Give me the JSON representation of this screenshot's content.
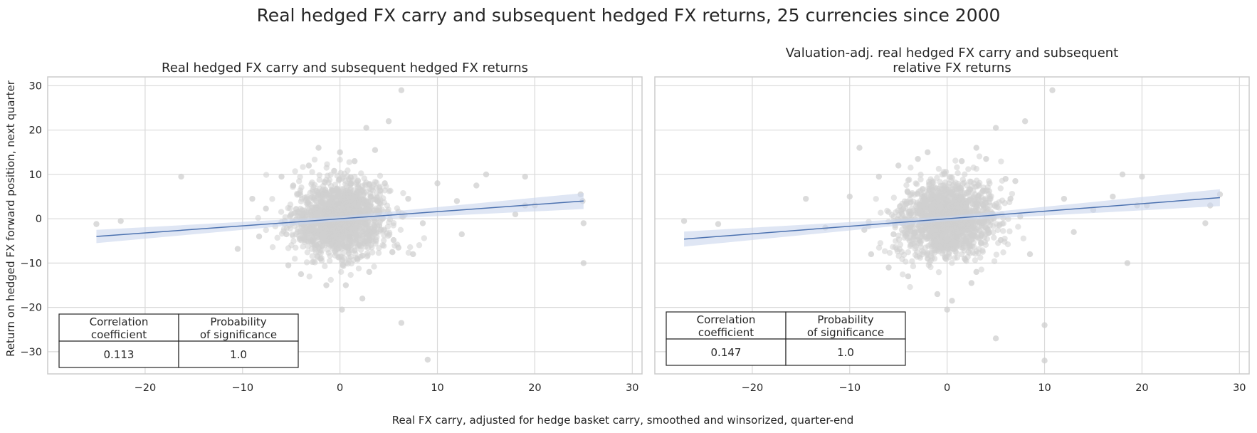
{
  "figure": {
    "title": "Real hedged FX carry and subsequent hedged FX returns, 25 currencies since 2000",
    "xlabel": "Real FX carry, adjusted for hedge basket carry, smoothed and winsorized, quarter-end",
    "ylabel": "Return on hedged FX forward position, next quarter"
  },
  "colors": {
    "points": "#cfcfcf",
    "line": "#4c72b0",
    "band": "#c9d5ec",
    "grid": "#d9d9d9",
    "spine": "#cccccc"
  },
  "chart_data": [
    {
      "type": "scatter",
      "title_lines": [
        "Real hedged FX carry and subsequent hedged FX returns"
      ],
      "xlim": [
        -30,
        31
      ],
      "ylim": [
        -35,
        32
      ],
      "xticks": [
        -20,
        -10,
        0,
        10,
        20,
        30
      ],
      "yticks": [
        -30,
        -20,
        -10,
        0,
        10,
        20,
        30
      ],
      "grid": true,
      "regression": {
        "slope": 0.16,
        "intercept": 0.0,
        "x_range": [
          -25,
          25
        ],
        "band": [
          [
            -25,
            1.5
          ],
          [
            0,
            0.5
          ],
          [
            25,
            1.8
          ]
        ]
      },
      "points_sample": [
        [
          -25.0,
          -1.2
        ],
        [
          -22.5,
          -0.5
        ],
        [
          -16.3,
          9.5
        ],
        [
          -10.5,
          -6.8
        ],
        [
          -9.0,
          4.5
        ],
        [
          -8.3,
          -4.0
        ],
        [
          -7.6,
          2.3
        ],
        [
          -6.0,
          9.5
        ],
        [
          -5.3,
          -10.5
        ],
        [
          -4.8,
          7.5
        ],
        [
          -4.0,
          -12.5
        ],
        [
          -3.2,
          12.0
        ],
        [
          -2.2,
          16.0
        ],
        [
          -1.4,
          -15.0
        ],
        [
          -0.6,
          10.8
        ],
        [
          0.0,
          15.0
        ],
        [
          0.2,
          -20.5
        ],
        [
          0.6,
          -15.0
        ],
        [
          1.5,
          13.0
        ],
        [
          2.3,
          -18.0
        ],
        [
          2.7,
          20.5
        ],
        [
          3.6,
          15.5
        ],
        [
          4.6,
          8.0
        ],
        [
          5.0,
          22.0
        ],
        [
          6.3,
          29.0
        ],
        [
          6.0,
          -6.5
        ],
        [
          6.3,
          -23.5
        ],
        [
          7.5,
          -8.0
        ],
        [
          9.0,
          -31.8
        ],
        [
          8.5,
          -1.0
        ],
        [
          10.0,
          8.0
        ],
        [
          12.0,
          4.0
        ],
        [
          12.5,
          -3.5
        ],
        [
          14.0,
          7.5
        ],
        [
          15.0,
          10.0
        ],
        [
          18.0,
          1.0
        ],
        [
          19.0,
          9.5
        ],
        [
          19.0,
          3.0
        ],
        [
          20.0,
          3.0
        ],
        [
          24.7,
          5.5
        ],
        [
          24.9,
          4.0
        ],
        [
          25.0,
          -10.0
        ],
        [
          25.0,
          -1.0
        ],
        [
          -1.5,
          6.5
        ],
        [
          1.8,
          -9.0
        ],
        [
          -2.8,
          -5.0
        ],
        [
          3.2,
          5.0
        ],
        [
          -3.8,
          0.8
        ],
        [
          4.2,
          -2.5
        ],
        [
          -0.2,
          3.5
        ],
        [
          1.0,
          -4.0
        ],
        [
          2.0,
          1.2
        ],
        [
          -1.0,
          -1.5
        ],
        [
          0.4,
          0.3
        ],
        [
          -4.5,
          2.2
        ],
        [
          5.5,
          -4.8
        ],
        [
          -5.5,
          -3.5
        ],
        [
          3.0,
          -12.0
        ],
        [
          -2.0,
          -9.0
        ],
        [
          7.0,
          4.5
        ]
      ],
      "table": {
        "headers": [
          [
            "Correlation",
            "coefficient"
          ],
          [
            "Probability",
            "of significance"
          ]
        ],
        "values": [
          "0.113",
          "1.0"
        ]
      }
    },
    {
      "type": "scatter",
      "title_lines": [
        "Valuation-adj. real hedged FX carry and subsequent",
        "relative FX returns"
      ],
      "xlim": [
        -30,
        31
      ],
      "ylim": [
        -35,
        32
      ],
      "xticks": [
        -20,
        -10,
        0,
        10,
        20,
        30
      ],
      "yticks": [
        -30,
        -20,
        -10,
        0,
        10,
        20,
        30
      ],
      "grid": true,
      "regression": {
        "slope": 0.17,
        "intercept": 0.0,
        "x_range": [
          -27,
          28
        ],
        "band": [
          [
            -27,
            1.7
          ],
          [
            0,
            0.5
          ],
          [
            28,
            1.9
          ]
        ]
      },
      "points_sample": [
        [
          -27.0,
          -0.5
        ],
        [
          -23.5,
          -1.2
        ],
        [
          -14.5,
          4.5
        ],
        [
          -12.5,
          -2.0
        ],
        [
          -10.0,
          5.0
        ],
        [
          -9.0,
          16.0
        ],
        [
          -7.8,
          -8.0
        ],
        [
          -7.0,
          9.5
        ],
        [
          -6.0,
          -11.0
        ],
        [
          -5.0,
          12.0
        ],
        [
          -4.0,
          -13.0
        ],
        [
          -3.0,
          13.5
        ],
        [
          -2.0,
          15.0
        ],
        [
          -1.0,
          -17.0
        ],
        [
          0.0,
          -20.5
        ],
        [
          0.5,
          -18.5
        ],
        [
          1.5,
          13.0
        ],
        [
          2.5,
          -14.5
        ],
        [
          3.0,
          16.0
        ],
        [
          4.0,
          13.5
        ],
        [
          5.0,
          20.5
        ],
        [
          5.0,
          -27.0
        ],
        [
          7.0,
          8.5
        ],
        [
          7.5,
          0.5
        ],
        [
          8.0,
          22.0
        ],
        [
          8.5,
          -8.0
        ],
        [
          10.0,
          -24.0
        ],
        [
          10.0,
          -32.0
        ],
        [
          10.8,
          29.0
        ],
        [
          12.0,
          4.5
        ],
        [
          13.0,
          -3.0
        ],
        [
          15.0,
          2.0
        ],
        [
          17.0,
          5.0
        ],
        [
          18.0,
          10.0
        ],
        [
          18.5,
          -10.0
        ],
        [
          19.5,
          3.0
        ],
        [
          20.0,
          9.5
        ],
        [
          20.5,
          3.0
        ],
        [
          26.5,
          -1.0
        ],
        [
          27.0,
          3.0
        ],
        [
          28.0,
          5.5
        ],
        [
          -1.5,
          6.5
        ],
        [
          1.8,
          -9.0
        ],
        [
          -2.8,
          -5.0
        ],
        [
          3.2,
          5.0
        ],
        [
          -3.8,
          0.8
        ],
        [
          4.2,
          -2.5
        ],
        [
          -0.2,
          3.5
        ],
        [
          1.0,
          -4.0
        ],
        [
          2.0,
          1.2
        ],
        [
          -1.0,
          -1.5
        ],
        [
          0.4,
          0.3
        ],
        [
          -4.5,
          2.2
        ],
        [
          5.5,
          -4.8
        ],
        [
          -5.5,
          -3.5
        ],
        [
          3.0,
          -12.0
        ],
        [
          -2.0,
          -9.0
        ],
        [
          6.5,
          4.5
        ],
        [
          -8.5,
          -2.5
        ],
        [
          6.0,
          9.0
        ]
      ],
      "table": {
        "headers": [
          [
            "Correlation",
            "coefficient"
          ],
          [
            "Probability",
            "of significance"
          ]
        ],
        "values": [
          "0.147",
          "1.0"
        ]
      }
    }
  ]
}
